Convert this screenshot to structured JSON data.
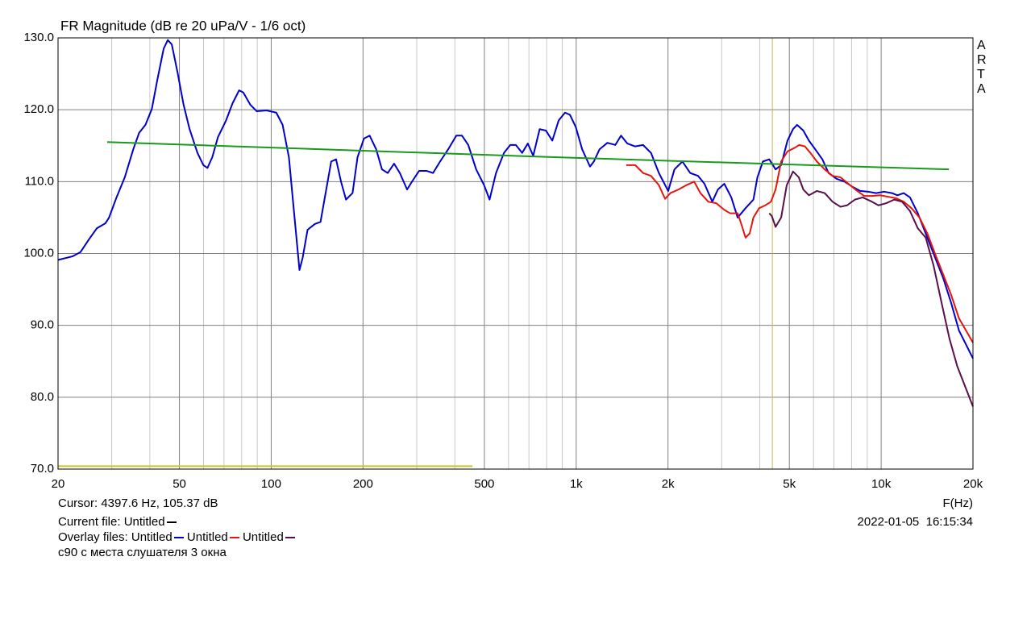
{
  "chart_data": {
    "type": "line",
    "title": "FR Magnitude (dB re 20 uPa/V - 1/6 oct)",
    "watermark": "ARTA",
    "xlabel": "F(Hz)",
    "xscale": "log",
    "xlim": [
      20,
      20000
    ],
    "ylim": [
      70,
      130
    ],
    "xticks": [
      20,
      50,
      100,
      200,
      500,
      {
        "value": 1000,
        "label": "1k"
      },
      {
        "value": 2000,
        "label": "2k"
      },
      {
        "value": 5000,
        "label": "5k"
      },
      {
        "value": 10000,
        "label": "10k"
      },
      {
        "value": 20000,
        "label": "20k"
      }
    ],
    "xgrid": [
      30,
      40,
      60,
      70,
      80,
      90,
      300,
      400,
      600,
      700,
      800,
      900,
      3000,
      4000,
      6000,
      7000,
      8000,
      9000
    ],
    "yticks": [
      {
        "value": 70,
        "label": "70.0"
      },
      {
        "value": 80,
        "label": "80.0"
      },
      {
        "value": 90,
        "label": "90.0"
      },
      {
        "value": 100,
        "label": "100.0"
      },
      {
        "value": 110,
        "label": "110.0"
      },
      {
        "value": 120,
        "label": "120.0"
      },
      {
        "value": 130,
        "label": "130.0"
      }
    ],
    "grid": true,
    "cursor": {
      "x": 4397.6,
      "label": "Cursor: 4397.6 Hz, 105.37 dB",
      "color": "#c8b450"
    },
    "current_file": {
      "label": "Current file:",
      "name": "Untitled",
      "color": "#000000"
    },
    "overlay_label": "Overlay files:",
    "date": "2022-01-05  16:15:34",
    "note": "c90 с места слушателя 3 окна",
    "series": [
      {
        "name": "Untitled",
        "color": "#0000cc",
        "x": [
          20,
          22.3,
          23.7,
          25.2,
          26.8,
          28.6,
          29.4,
          31.1,
          33.1,
          35.3,
          36.9,
          38.7,
          40.6,
          42.3,
          44.4,
          45.8,
          47.2,
          49.3,
          51.6,
          54,
          57.3,
          59.9,
          61.8,
          64.1,
          66.9,
          71.1,
          74.7,
          78.5,
          81,
          85.4,
          89.6,
          96.7,
          103.9,
          109,
          114.3,
          118.6,
          123.8,
          126.8,
          131.6,
          139,
          145.1,
          150.8,
          157.3,
          163.2,
          169.4,
          175.9,
          184.8,
          191.9,
          201.5,
          210.3,
          220.9,
          230.8,
          241,
          252.9,
          264.1,
          279,
          287.5,
          305.5,
          322.9,
          339.4,
          357.9,
          380.6,
          404.5,
          422.2,
          442.7,
          470,
          499,
          520,
          546,
          580,
          608,
          634,
          665,
          694,
          723,
          759,
          796,
          835,
          876,
          919,
          954,
          997,
          1046,
          1110,
          1143,
          1193,
          1266,
          1344,
          1403,
          1472,
          1561,
          1657,
          1759,
          1867,
          2003,
          2100,
          2230,
          2366,
          2510,
          2634,
          2795,
          2915,
          3060,
          3226,
          3384,
          3592,
          3812,
          3929,
          4095,
          4297,
          4507,
          4700,
          4930,
          5141,
          5299,
          5557,
          5797,
          6078,
          6416,
          6723,
          7139,
          7579,
          8045,
          8535,
          9067,
          9626,
          10218,
          10846,
          11310,
          11855,
          12434,
          13190,
          14168,
          15038,
          15966,
          16944,
          17990,
          20000
        ],
        "values": [
          99.1,
          99.6,
          100.2,
          101.9,
          103.5,
          104.2,
          105,
          107.8,
          110.6,
          114.5,
          116.8,
          117.9,
          120.1,
          124.1,
          128.5,
          129.7,
          129.1,
          125.2,
          120.7,
          117.3,
          114,
          112.3,
          111.9,
          113.4,
          116.2,
          118.5,
          120.9,
          122.7,
          122.4,
          120.7,
          119.8,
          119.9,
          119.6,
          117.9,
          113.4,
          106.1,
          97.7,
          99.4,
          103.3,
          104.1,
          104.4,
          108.4,
          112.8,
          113.1,
          110,
          107.5,
          108.4,
          113.4,
          116,
          116.4,
          114.5,
          111.7,
          111.2,
          112.5,
          111.2,
          108.9,
          109.8,
          111.5,
          111.5,
          111.2,
          112.8,
          114.5,
          116.4,
          116.4,
          115.1,
          111.7,
          109.5,
          107.5,
          111.2,
          114,
          115.1,
          115.1,
          114,
          115.3,
          113.6,
          117.3,
          117.1,
          115.7,
          118.5,
          119.6,
          119.3,
          117.6,
          114.5,
          112.1,
          112.8,
          114.5,
          115.4,
          115.1,
          116.4,
          115.3,
          114.9,
          115.1,
          114,
          111.2,
          108.7,
          111.7,
          112.8,
          111.2,
          110.8,
          109.7,
          107.2,
          108.9,
          109.7,
          107.8,
          105,
          106.3,
          107.5,
          110.6,
          112.8,
          113.1,
          111.7,
          112.3,
          115.7,
          117.3,
          117.9,
          117.1,
          115.7,
          114.5,
          113.1,
          111.2,
          110.4,
          110,
          109.3,
          108.7,
          108.6,
          108.4,
          108.6,
          108.4,
          108.1,
          108.4,
          107.8,
          105.6,
          102.2,
          99.4,
          96.6,
          93.2,
          89.3,
          85.4
        ]
      },
      {
        "name": "Untitled",
        "color": "#e8140e",
        "x": [
          1460,
          1561,
          1657,
          1759,
          1867,
          1957,
          2037,
          2165,
          2297,
          2437,
          2555,
          2712,
          2878,
          3054,
          3193,
          3384,
          3491,
          3592,
          3707,
          3812,
          3979,
          4170,
          4350,
          4507,
          4700,
          4930,
          5201,
          5389,
          5623,
          5859,
          6156,
          6530,
          6928,
          7356,
          7809,
          8290,
          8800,
          9337,
          9912,
          10523,
          11170,
          11855,
          12580,
          13357,
          14168,
          15038,
          15966,
          16944,
          17990,
          20000
        ],
        "values": [
          112.3,
          112.3,
          111.2,
          110.8,
          109.5,
          107.6,
          108.4,
          108.9,
          109.5,
          110,
          108.4,
          107.2,
          107,
          106.1,
          105.6,
          105.6,
          103.9,
          102.2,
          102.8,
          105,
          106.3,
          106.7,
          107.2,
          108.9,
          112.8,
          114.2,
          114.7,
          115.1,
          114.9,
          114,
          112.8,
          111.7,
          110.8,
          110.6,
          109.7,
          108.8,
          108,
          108,
          108.1,
          107.9,
          107.7,
          107.2,
          106.3,
          105,
          102.8,
          99.9,
          97.1,
          94.3,
          91,
          87.6
        ]
      },
      {
        "name": "Untitled",
        "color": "#5a0f4a",
        "x": [
          4297,
          4381,
          4507,
          4700,
          4902,
          5141,
          5369,
          5557,
          5797,
          6156,
          6530,
          6928,
          7356,
          7727,
          8202,
          8700,
          9232,
          9797,
          10399,
          11038,
          11715,
          12434,
          13190,
          14000,
          14859,
          15770,
          16739,
          17766,
          20000
        ],
        "values": [
          105.6,
          105.2,
          103.7,
          105,
          109.5,
          111.4,
          110.6,
          108.9,
          108.1,
          108.7,
          108.4,
          107.2,
          106.5,
          106.7,
          107.5,
          107.8,
          107.3,
          106.7,
          107,
          107.5,
          107.2,
          105.9,
          103.5,
          102.2,
          98.3,
          93.2,
          88.2,
          84.3,
          78.7
        ]
      },
      {
        "color": "#1a9a1a",
        "x": [
          29,
          1000,
          16675
        ],
        "values": [
          115.5,
          113.3,
          111.7
        ]
      },
      {
        "color": "#c8c81e",
        "x": [
          20,
          457
        ],
        "values": [
          70.4,
          70.4
        ]
      }
    ]
  }
}
